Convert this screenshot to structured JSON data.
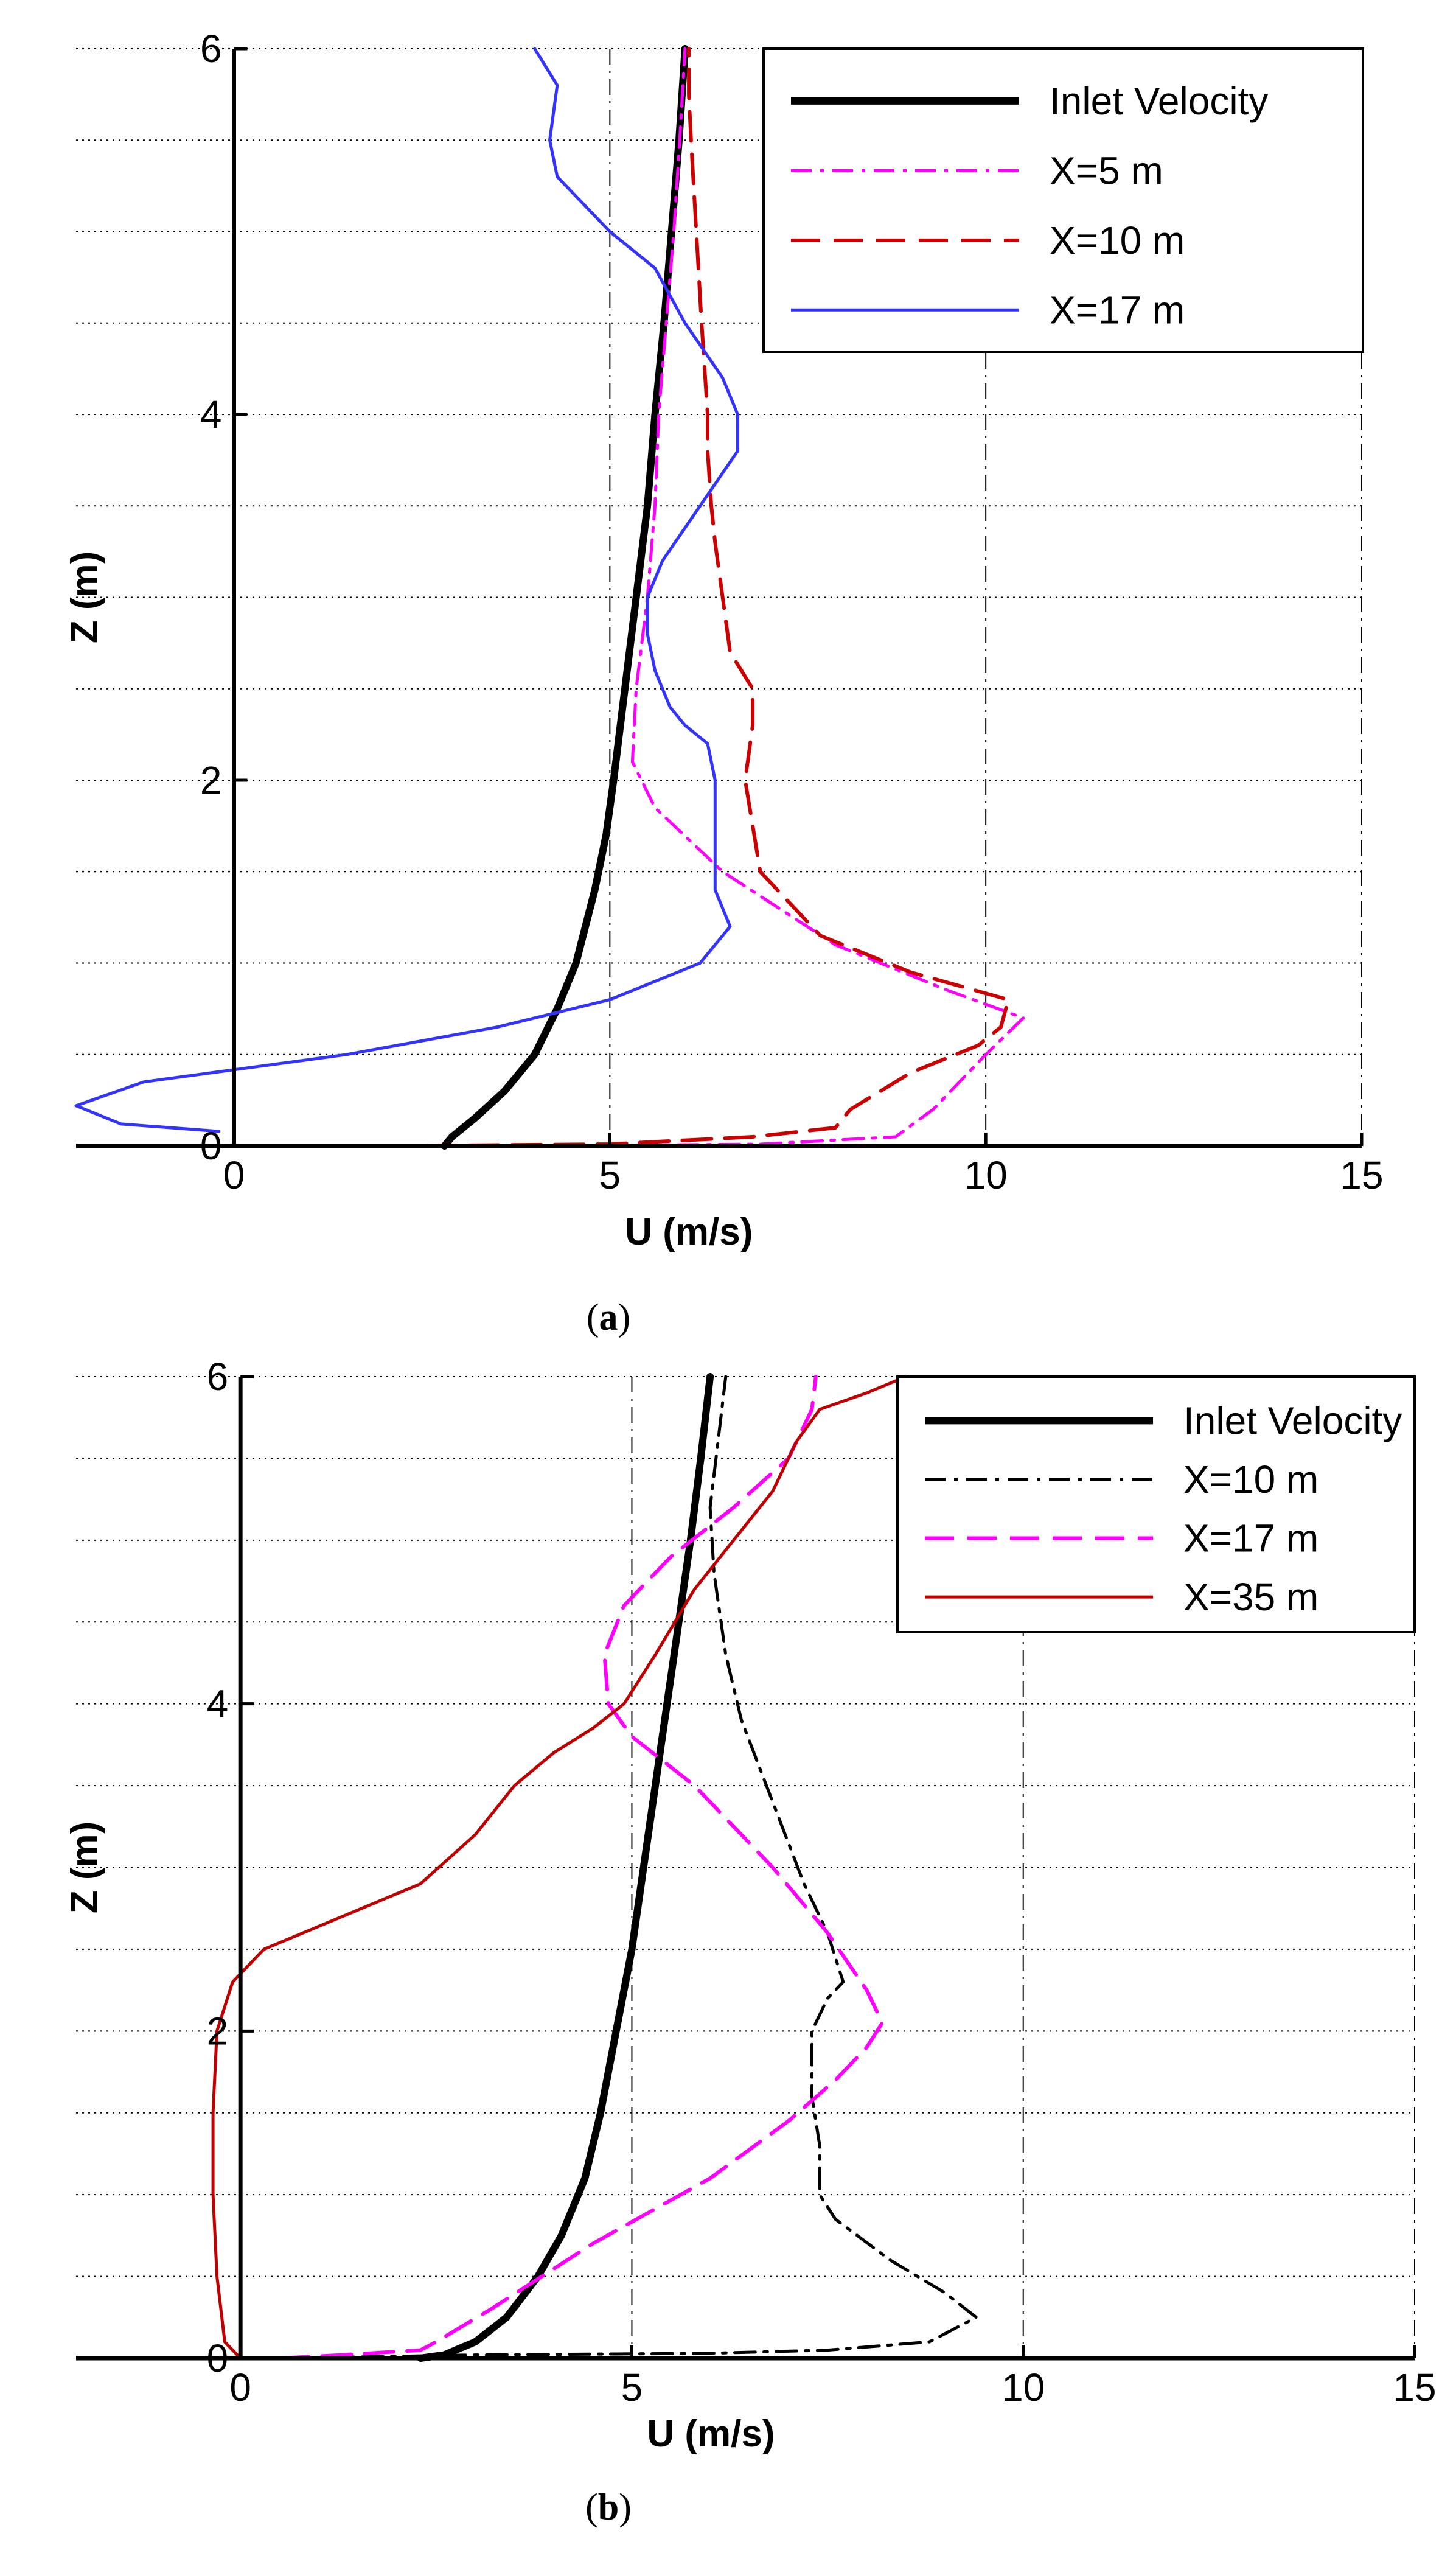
{
  "figures": {
    "a": {
      "caption_open": "(",
      "caption_letter": "a",
      "caption_close": ")"
    },
    "b": {
      "caption_open": "(",
      "caption_letter": "b",
      "caption_close": ")"
    }
  },
  "colors": {
    "black": "#000000",
    "magenta": "#ff00ff",
    "red": "#cc0000",
    "blue": "#3333ff",
    "darkred": "#c00000"
  },
  "chart_data": [
    {
      "id": "a",
      "type": "line",
      "title": "",
      "xlabel": "U (m/s)",
      "ylabel": "Z (m)",
      "xlim": [
        -2.1,
        15
      ],
      "ylim": [
        0,
        6
      ],
      "xticks": [
        0,
        5,
        10,
        15
      ],
      "yticks": [
        0,
        2,
        4,
        6
      ],
      "legend_position": "top-right",
      "series": [
        {
          "name": "Inlet Velocity",
          "color": "#000000",
          "style": "solid-thick",
          "points": [
            [
              2.8,
              0.0
            ],
            [
              2.9,
              0.05
            ],
            [
              3.2,
              0.15
            ],
            [
              3.6,
              0.3
            ],
            [
              4.0,
              0.5
            ],
            [
              4.3,
              0.75
            ],
            [
              4.55,
              1.0
            ],
            [
              4.8,
              1.4
            ],
            [
              4.95,
              1.7
            ],
            [
              5.05,
              2.0
            ],
            [
              5.2,
              2.5
            ],
            [
              5.35,
              3.0
            ],
            [
              5.5,
              3.5
            ],
            [
              5.6,
              4.0
            ],
            [
              5.72,
              4.5
            ],
            [
              5.82,
              5.0
            ],
            [
              5.92,
              5.5
            ],
            [
              6.0,
              6.0
            ]
          ]
        },
        {
          "name": "X=5 m",
          "color": "#ff00ff",
          "style": "dashdot",
          "points": [
            [
              1.5,
              0.0
            ],
            [
              4.0,
              0.0
            ],
            [
              7.0,
              0.01
            ],
            [
              8.8,
              0.05
            ],
            [
              9.3,
              0.2
            ],
            [
              10.0,
              0.5
            ],
            [
              10.5,
              0.7
            ],
            [
              9.5,
              0.85
            ],
            [
              8.0,
              1.1
            ],
            [
              6.5,
              1.5
            ],
            [
              5.6,
              1.85
            ],
            [
              5.3,
              2.1
            ],
            [
              5.35,
              2.5
            ],
            [
              5.5,
              3.0
            ],
            [
              5.6,
              3.5
            ],
            [
              5.65,
              4.0
            ],
            [
              5.75,
              4.5
            ],
            [
              5.85,
              5.0
            ],
            [
              5.93,
              5.5
            ],
            [
              6.0,
              6.0
            ]
          ]
        },
        {
          "name": "X=10 m",
          "color": "#cc0000",
          "style": "dashed",
          "points": [
            [
              2.0,
              0.0
            ],
            [
              5.0,
              0.01
            ],
            [
              6.9,
              0.05
            ],
            [
              8.0,
              0.1
            ],
            [
              8.2,
              0.2
            ],
            [
              9.0,
              0.4
            ],
            [
              9.9,
              0.55
            ],
            [
              10.2,
              0.65
            ],
            [
              10.3,
              0.8
            ],
            [
              9.0,
              0.95
            ],
            [
              7.8,
              1.15
            ],
            [
              7.0,
              1.5
            ],
            [
              6.8,
              2.0
            ],
            [
              6.9,
              2.3
            ],
            [
              6.9,
              2.5
            ],
            [
              6.6,
              2.7
            ],
            [
              6.5,
              3.0
            ],
            [
              6.4,
              3.3
            ],
            [
              6.35,
              3.5
            ],
            [
              6.3,
              3.8
            ],
            [
              6.3,
              4.0
            ],
            [
              6.22,
              4.5
            ],
            [
              6.15,
              5.0
            ],
            [
              6.08,
              5.5
            ],
            [
              6.05,
              5.75
            ],
            [
              6.05,
              6.0
            ]
          ]
        },
        {
          "name": "X=17 m",
          "color": "#3333ff",
          "style": "solid",
          "points": [
            [
              -0.2,
              0.08
            ],
            [
              -1.5,
              0.12
            ],
            [
              -2.1,
              0.22
            ],
            [
              -1.2,
              0.35
            ],
            [
              1.5,
              0.5
            ],
            [
              3.5,
              0.65
            ],
            [
              5.0,
              0.8
            ],
            [
              6.2,
              1.0
            ],
            [
              6.6,
              1.2
            ],
            [
              6.4,
              1.4
            ],
            [
              6.4,
              1.7
            ],
            [
              6.4,
              2.0
            ],
            [
              6.3,
              2.2
            ],
            [
              6.0,
              2.3
            ],
            [
              5.8,
              2.4
            ],
            [
              5.6,
              2.6
            ],
            [
              5.5,
              2.8
            ],
            [
              5.5,
              3.0
            ],
            [
              5.7,
              3.2
            ],
            [
              6.2,
              3.5
            ],
            [
              6.7,
              3.8
            ],
            [
              6.7,
              4.0
            ],
            [
              6.5,
              4.2
            ],
            [
              6.0,
              4.5
            ],
            [
              5.6,
              4.8
            ],
            [
              5.0,
              5.0
            ],
            [
              4.3,
              5.3
            ],
            [
              4.2,
              5.5
            ],
            [
              4.3,
              5.8
            ],
            [
              4.0,
              6.0
            ]
          ]
        }
      ]
    },
    {
      "id": "b",
      "type": "line",
      "title": "",
      "xlabel": "U (m/s)",
      "ylabel": "Z (m)",
      "xlim": [
        -2.1,
        15
      ],
      "ylim": [
        0,
        6
      ],
      "xticks": [
        0,
        5,
        10,
        15
      ],
      "yticks": [
        0,
        2,
        4,
        6
      ],
      "legend_position": "top-right",
      "series": [
        {
          "name": "Inlet Velocity",
          "color": "#000000",
          "style": "solid-thick",
          "points": [
            [
              2.3,
              0.0
            ],
            [
              2.6,
              0.02
            ],
            [
              3.0,
              0.1
            ],
            [
              3.4,
              0.25
            ],
            [
              3.8,
              0.5
            ],
            [
              4.1,
              0.75
            ],
            [
              4.4,
              1.1
            ],
            [
              4.6,
              1.5
            ],
            [
              4.8,
              2.0
            ],
            [
              5.0,
              2.5
            ],
            [
              5.15,
              3.0
            ],
            [
              5.3,
              3.5
            ],
            [
              5.45,
              4.0
            ],
            [
              5.6,
              4.5
            ],
            [
              5.75,
              5.0
            ],
            [
              5.88,
              5.5
            ],
            [
              6.0,
              6.0
            ]
          ]
        },
        {
          "name": "X=10 m",
          "color": "#000000",
          "style": "dashdot",
          "points": [
            [
              0.5,
              0.0
            ],
            [
              3.0,
              0.02
            ],
            [
              6.0,
              0.03
            ],
            [
              7.5,
              0.05
            ],
            [
              8.8,
              0.1
            ],
            [
              9.4,
              0.25
            ],
            [
              9.0,
              0.4
            ],
            [
              8.3,
              0.6
            ],
            [
              7.6,
              0.85
            ],
            [
              7.4,
              1.0
            ],
            [
              7.4,
              1.3
            ],
            [
              7.3,
              1.6
            ],
            [
              7.3,
              2.0
            ],
            [
              7.5,
              2.2
            ],
            [
              7.7,
              2.3
            ],
            [
              7.5,
              2.6
            ],
            [
              7.2,
              2.9
            ],
            [
              6.8,
              3.4
            ],
            [
              6.4,
              3.9
            ],
            [
              6.2,
              4.3
            ],
            [
              6.05,
              4.8
            ],
            [
              6.0,
              5.2
            ],
            [
              6.1,
              5.6
            ],
            [
              6.2,
              6.0
            ]
          ]
        },
        {
          "name": "X=17 m",
          "color": "#ff00ff",
          "style": "dashed",
          "points": [
            [
              0.5,
              0.0
            ],
            [
              1.3,
              0.02
            ],
            [
              2.3,
              0.05
            ],
            [
              2.5,
              0.1
            ],
            [
              3.2,
              0.3
            ],
            [
              4.5,
              0.7
            ],
            [
              6.0,
              1.1
            ],
            [
              7.0,
              1.45
            ],
            [
              7.6,
              1.7
            ],
            [
              8.0,
              1.9
            ],
            [
              8.2,
              2.05
            ],
            [
              8.0,
              2.25
            ],
            [
              7.5,
              2.6
            ],
            [
              6.8,
              3.0
            ],
            [
              5.8,
              3.5
            ],
            [
              5.0,
              3.8
            ],
            [
              4.7,
              4.0
            ],
            [
              4.65,
              4.3
            ],
            [
              4.9,
              4.6
            ],
            [
              5.5,
              4.9
            ],
            [
              6.3,
              5.2
            ],
            [
              7.0,
              5.5
            ],
            [
              7.3,
              5.8
            ],
            [
              7.35,
              6.0
            ]
          ]
        },
        {
          "name": "X=35 m",
          "color": "#c00000",
          "style": "solid",
          "points": [
            [
              0.0,
              0.0
            ],
            [
              -0.1,
              0.05
            ],
            [
              -0.2,
              0.1
            ],
            [
              -0.3,
              0.5
            ],
            [
              -0.35,
              1.0
            ],
            [
              -0.35,
              1.5
            ],
            [
              -0.3,
              2.0
            ],
            [
              -0.1,
              2.3
            ],
            [
              0.3,
              2.5
            ],
            [
              1.3,
              2.7
            ],
            [
              2.3,
              2.9
            ],
            [
              3.0,
              3.2
            ],
            [
              3.5,
              3.5
            ],
            [
              4.0,
              3.7
            ],
            [
              4.5,
              3.85
            ],
            [
              4.9,
              4.0
            ],
            [
              5.3,
              4.3
            ],
            [
              5.8,
              4.7
            ],
            [
              6.3,
              5.0
            ],
            [
              6.8,
              5.3
            ],
            [
              7.1,
              5.6
            ],
            [
              7.4,
              5.8
            ],
            [
              8.0,
              5.9
            ],
            [
              8.5,
              6.0
            ]
          ]
        }
      ]
    }
  ]
}
